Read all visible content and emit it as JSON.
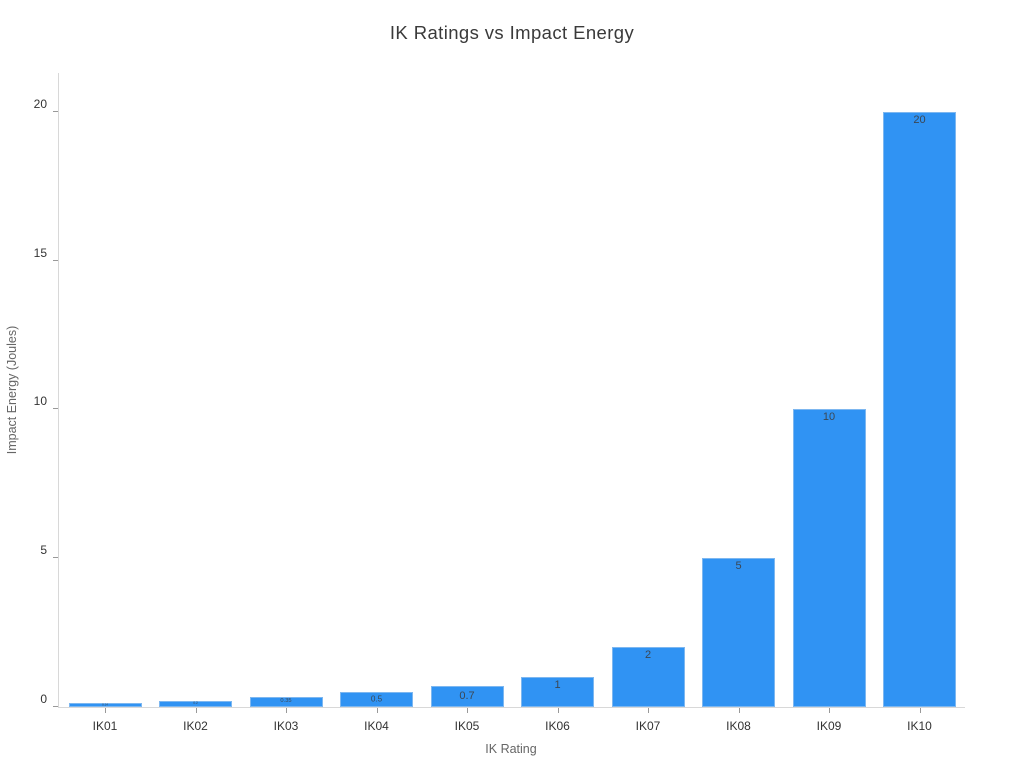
{
  "title": "IK Ratings vs Impact Energy",
  "chart_data": {
    "type": "bar",
    "title": "IK Ratings vs Impact Energy",
    "xlabel": "IK Rating",
    "ylabel": "Impact Energy (Joules)",
    "categories": [
      "IK01",
      "IK02",
      "IK03",
      "IK04",
      "IK05",
      "IK06",
      "IK07",
      "IK08",
      "IK09",
      "IK10"
    ],
    "values": [
      0.14,
      0.2,
      0.35,
      0.5,
      0.7,
      1,
      2,
      5,
      10,
      20
    ],
    "bar_labels": [
      "0.14",
      "0.2",
      "0.35",
      "0.5",
      "0.7",
      "1",
      "2",
      "5",
      "10",
      "20"
    ],
    "ylim": [
      0,
      21.3
    ],
    "yticks": [
      0,
      5,
      10,
      15,
      20
    ],
    "ytick_labels": [
      "0",
      "5",
      "10",
      "15",
      "20"
    ],
    "grid": false,
    "legend_position": "none",
    "colors": {
      "bar_fill": "#3093f3",
      "bar_border": "#7db7f0",
      "bar_value_text": "#3b4754",
      "axis_line": "#d8d8d8",
      "tick_mark": "#999999",
      "tick_text": "#333333",
      "axis_title_text": "#666666",
      "title_text": "#3a3a3a"
    }
  }
}
